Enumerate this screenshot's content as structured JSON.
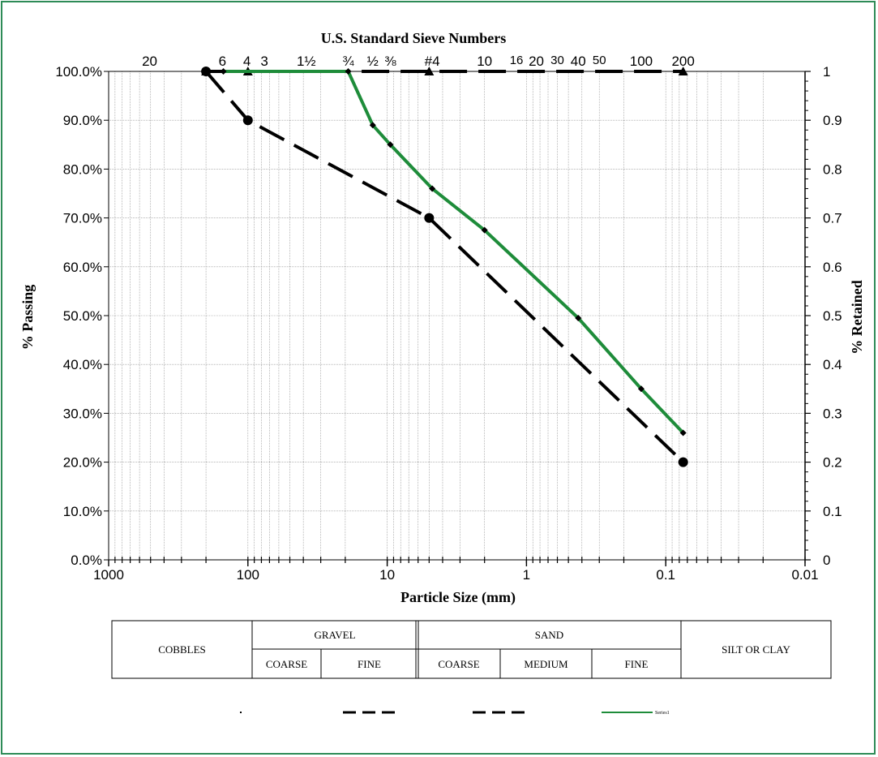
{
  "colors": {
    "frame": "#2e8b57",
    "series_green": "#1e8c3a",
    "series_black": "#000000"
  },
  "chart_data": {
    "type": "line",
    "title": "U.S. Standard Sieve Numbers",
    "xlabel": "Particle Size (mm)",
    "ylabel_left": "% Passing",
    "ylabel_right": "% Retained",
    "x_scale": "log",
    "x_reversed": true,
    "xlim": [
      1000,
      0.01
    ],
    "ylim": [
      0,
      1
    ],
    "x_ticks": [
      {
        "value": 1000,
        "label": "1000"
      },
      {
        "value": 100,
        "label": "100"
      },
      {
        "value": 10,
        "label": "10"
      },
      {
        "value": 1,
        "label": "1"
      },
      {
        "value": 0.1,
        "label": "0.1"
      },
      {
        "value": 0.01,
        "label": "0.01"
      }
    ],
    "y_ticks_left": [
      "0.0%",
      "10.0%",
      "20.0%",
      "30.0%",
      "40.0%",
      "50.0%",
      "60.0%",
      "70.0%",
      "80.0%",
      "90.0%",
      "100.0%"
    ],
    "y_ticks_right": [
      "0",
      "0.1",
      "0.2",
      "0.3",
      "0.4",
      "0.5",
      "0.6",
      "0.7",
      "0.8",
      "0.9",
      "1"
    ],
    "sieve_labels": [
      {
        "label": "20",
        "size": 508
      },
      {
        "label": "6",
        "size": 152.4
      },
      {
        "label": "4",
        "size": 101.6
      },
      {
        "label": "3",
        "size": 76.2
      },
      {
        "label": "1½",
        "size": 38.1
      },
      {
        "label": "¾",
        "size": 19.05
      },
      {
        "label": "½",
        "size": 12.7
      },
      {
        "label": "⅜",
        "size": 9.5
      },
      {
        "label": "#4",
        "size": 4.75
      },
      {
        "label": "10",
        "size": 2.0
      },
      {
        "label": "16",
        "size": 1.18
      },
      {
        "label": "20",
        "size": 0.85
      },
      {
        "label": "30",
        "size": 0.6
      },
      {
        "label": "40",
        "size": 0.425
      },
      {
        "label": "50",
        "size": 0.3
      },
      {
        "label": "100",
        "size": 0.15
      },
      {
        "label": "200",
        "size": 0.075
      }
    ],
    "grid": true,
    "series": [
      {
        "style": "dashed",
        "color": "#000000",
        "marker": "triangle",
        "x": [
          200,
          100,
          5,
          0.075
        ],
        "y": [
          1.0,
          1.0,
          1.0,
          1.0
        ]
      },
      {
        "style": "dashed",
        "color": "#000000",
        "marker": "circle",
        "x": [
          200,
          100,
          5,
          0.075
        ],
        "y": [
          1.0,
          0.9,
          0.7,
          0.2
        ]
      },
      {
        "name": "Series1",
        "style": "solid",
        "color": "#1e8c3a",
        "marker": "diamond",
        "x": [
          150,
          19.05,
          12.7,
          9.5,
          4.75,
          2.0,
          0.425,
          0.15,
          0.075
        ],
        "y": [
          1.0,
          1.0,
          0.89,
          0.85,
          0.76,
          0.675,
          0.495,
          0.35,
          0.26
        ]
      }
    ],
    "soil_table": {
      "cobbles": "COBBLES",
      "gravel": "GRAVEL",
      "gravel_coarse": "COARSE",
      "gravel_fine": "FINE",
      "sand": "SAND",
      "sand_coarse": "COARSE",
      "sand_medium": "MEDIUM",
      "sand_fine": "FINE",
      "silt_clay": "SILT OR CLAY"
    },
    "legend": {
      "placement": "bottom",
      "series1_label": "Series1"
    }
  }
}
